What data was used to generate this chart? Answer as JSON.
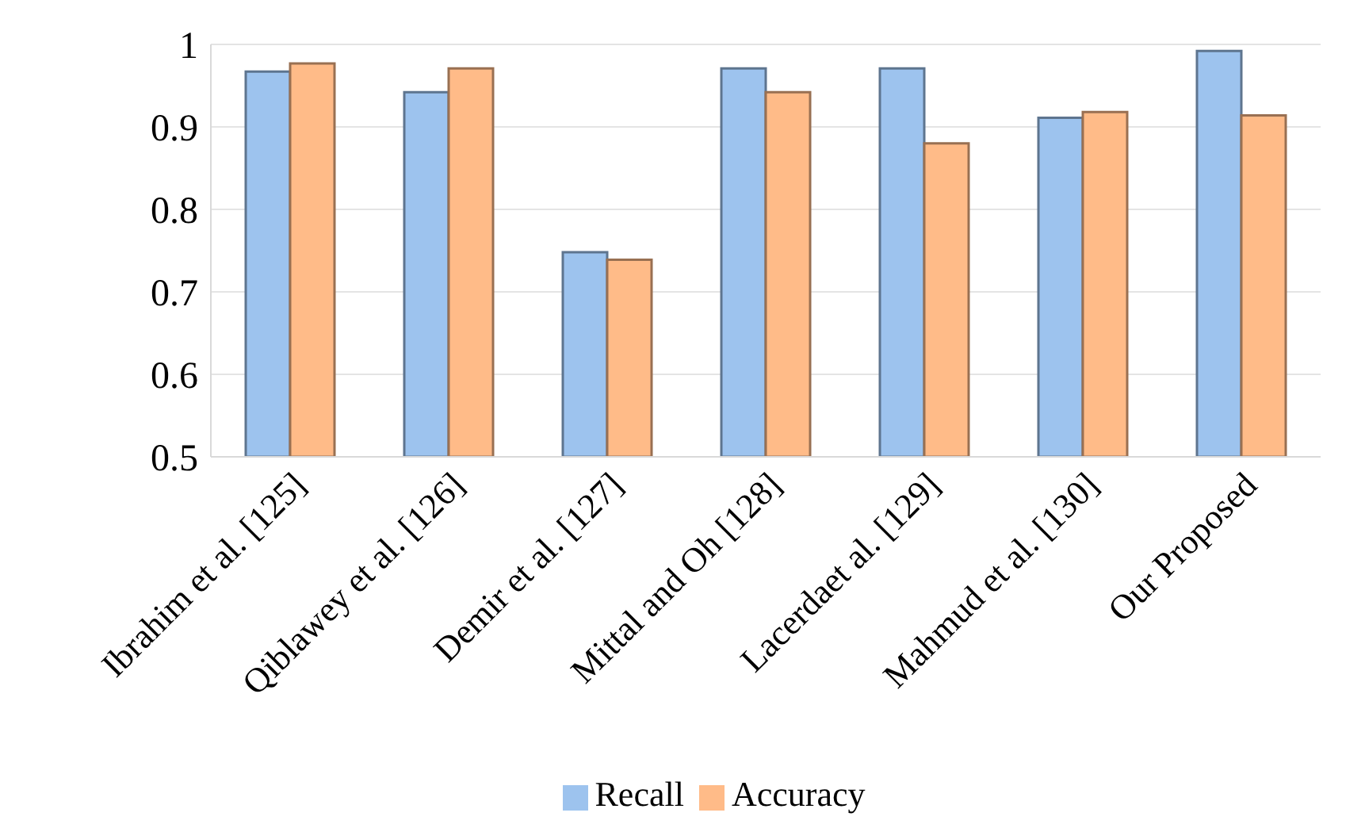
{
  "chart_data": {
    "type": "bar",
    "categories": [
      "Ibrahim et al. [125]",
      "Qiblawey et al. [126]",
      "Demir et al. [127]",
      "Mittal and Oh [128]",
      "Lacerdaet al. [129]",
      "Mahmud et al. [130]",
      "Our Proposed"
    ],
    "series": [
      {
        "name": "Recall",
        "color": "#9dc3ee",
        "values": [
          0.967,
          0.942,
          0.748,
          0.971,
          0.971,
          0.911,
          0.992
        ]
      },
      {
        "name": "Accuracy",
        "color": "#ffbb88",
        "values": [
          0.977,
          0.971,
          0.739,
          0.942,
          0.88,
          0.918,
          0.914
        ]
      }
    ],
    "ylim": [
      0.5,
      1
    ],
    "yticks": [
      0.5,
      0.6,
      0.7,
      0.8,
      0.9,
      1
    ],
    "grid": "y",
    "legend": "bottom"
  }
}
